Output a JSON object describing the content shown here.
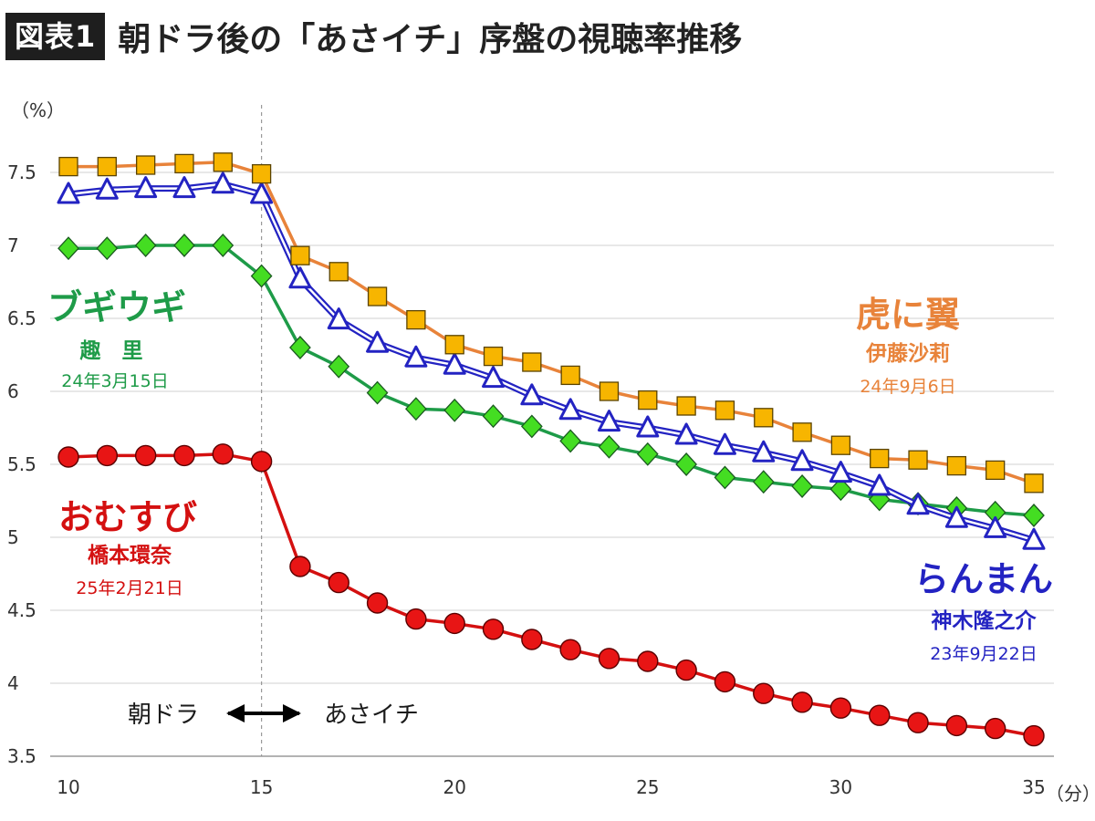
{
  "header": {
    "badge": "図表1",
    "title": "朝ドラ後の「あさイチ」序盤の視聴率推移"
  },
  "chart_data": {
    "type": "line",
    "title": "朝ドラ後の「あさイチ」序盤の視聴率推移",
    "ylabel": "（%）",
    "xlabel": "（分）",
    "xlim": [
      10,
      35
    ],
    "ylim": [
      3.5,
      7.5
    ],
    "x": [
      10,
      11,
      12,
      13,
      14,
      15,
      16,
      17,
      18,
      19,
      20,
      21,
      22,
      23,
      24,
      25,
      26,
      27,
      28,
      29,
      30,
      31,
      32,
      33,
      34,
      35
    ],
    "xticks": [
      10,
      15,
      20,
      25,
      30,
      35
    ],
    "xtick_labels": [
      "10",
      "15",
      "20",
      "25",
      "30",
      "35"
    ],
    "yticks": [
      3.5,
      4,
      4.5,
      5,
      5.5,
      6,
      6.5,
      7,
      7.5
    ],
    "ytick_labels": [
      "3.5",
      "4",
      "4.5",
      "5",
      "5.5",
      "6",
      "6.5",
      "7",
      "7.5"
    ],
    "divider_x": 15,
    "annotations": {
      "left": "朝ドラ",
      "right": "あさイチ"
    },
    "series": [
      {
        "key": "toranitsubasa",
        "name": "虎に翼",
        "actor": "伊藤沙莉",
        "date": "24年9月6日",
        "marker": "square",
        "color": "#e8833a",
        "fill": "#f7b500",
        "values": [
          7.54,
          7.54,
          7.55,
          7.56,
          7.57,
          7.49,
          6.93,
          6.82,
          6.65,
          6.49,
          6.32,
          6.24,
          6.2,
          6.11,
          6.0,
          5.94,
          5.9,
          5.87,
          5.82,
          5.72,
          5.63,
          5.54,
          5.53,
          5.49,
          5.46,
          5.37
        ]
      },
      {
        "key": "ranman",
        "name": "らんまん",
        "actor": "神木隆之介",
        "date": "23年9月22日",
        "marker": "triangle",
        "color": "#2323c2",
        "fill": "#ffffff",
        "values": [
          7.35,
          7.38,
          7.39,
          7.39,
          7.42,
          7.35,
          6.77,
          6.49,
          6.33,
          6.23,
          6.18,
          6.09,
          5.97,
          5.87,
          5.79,
          5.75,
          5.7,
          5.63,
          5.58,
          5.52,
          5.44,
          5.35,
          5.22,
          5.13,
          5.06,
          4.98
        ]
      },
      {
        "key": "boogiewoogie",
        "name": "ブギウギ",
        "actor": "趣　里",
        "date": "24年3月15日",
        "marker": "diamond",
        "color": "#1e9b48",
        "fill": "#44dd22",
        "values": [
          6.98,
          6.98,
          7.0,
          7.0,
          7.0,
          6.79,
          6.3,
          6.17,
          5.99,
          5.88,
          5.87,
          5.83,
          5.76,
          5.66,
          5.62,
          5.57,
          5.5,
          5.41,
          5.38,
          5.35,
          5.33,
          5.26,
          5.23,
          5.2,
          5.17,
          5.15
        ]
      },
      {
        "key": "omusubi",
        "name": "おむすび",
        "actor": "橋本環奈",
        "date": "25年2月21日",
        "marker": "circle",
        "color": "#d41010",
        "fill": "#e81515",
        "values": [
          5.55,
          5.56,
          5.56,
          5.56,
          5.57,
          5.52,
          4.8,
          4.69,
          4.55,
          4.44,
          4.41,
          4.37,
          4.3,
          4.23,
          4.17,
          4.15,
          4.09,
          4.01,
          3.93,
          3.87,
          3.83,
          3.78,
          3.73,
          3.71,
          3.69,
          3.64
        ]
      }
    ]
  }
}
